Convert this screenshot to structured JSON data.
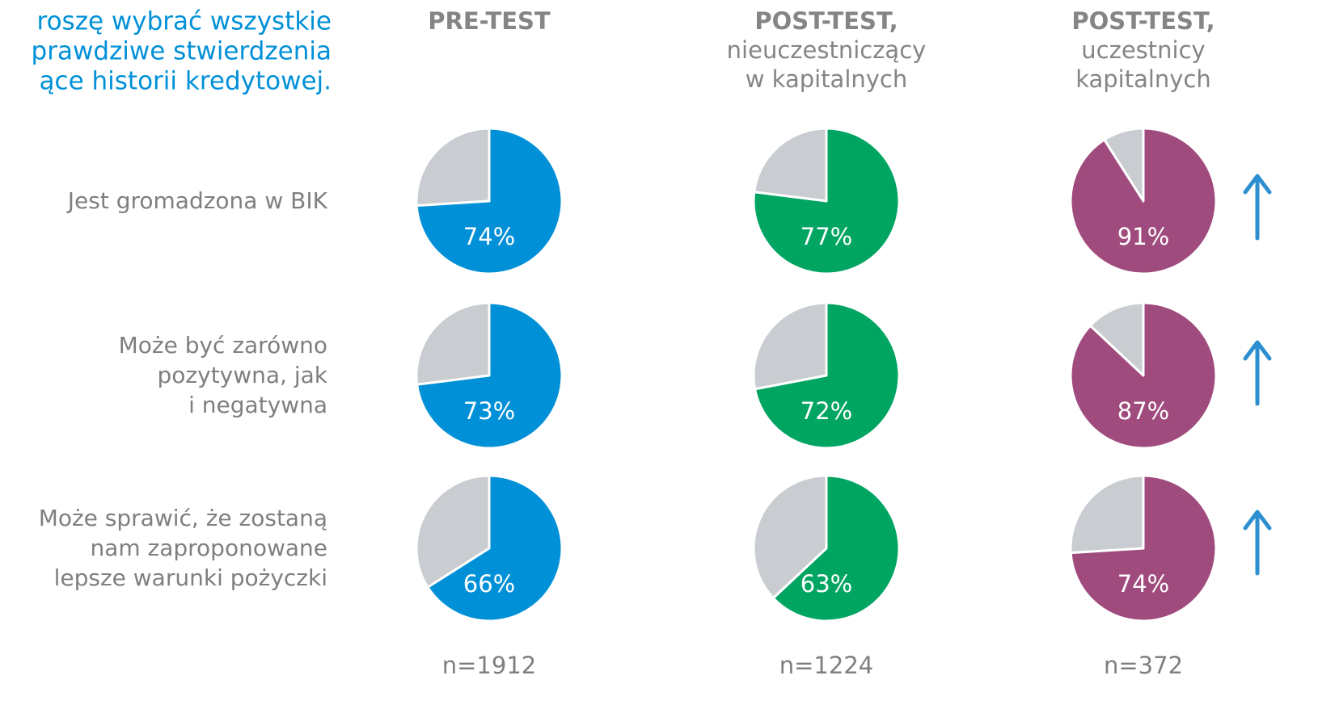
{
  "chart_data": {
    "type": "pie",
    "title": [
      "roszę wybrać wszystkie",
      "prawdziwe stwierdzenia",
      "ące historii kredytowej."
    ],
    "rows": [
      [
        "Jest gromadzona w BIK"
      ],
      [
        "Może być zarówno",
        "pozytywna, jak",
        "i negatywna"
      ],
      [
        "Może sprawić, że zostaną",
        "nam zaproponowane",
        "lepsze warunki pożyczki"
      ]
    ],
    "remainder_color": "#c9ccd0",
    "columns": [
      {
        "header": "PRE-TEST",
        "subheader": [],
        "color": "#0090d8",
        "values": [
          74,
          73,
          66
        ],
        "value_labels": [
          "74%",
          "73%",
          "66%"
        ],
        "n": "n=1912"
      },
      {
        "header": "POST-TEST,",
        "subheader": [
          "nieuczestniczący",
          "w kapitalnych"
        ],
        "color": "#00a562",
        "values": [
          77,
          72,
          63
        ],
        "value_labels": [
          "77%",
          "72%",
          "63%"
        ],
        "n": "n=1224"
      },
      {
        "header": "POST-TEST,",
        "subheader": [
          "uczestnicy",
          "kapitalnych"
        ],
        "color": "#a04b7d",
        "values": [
          91,
          87,
          74
        ],
        "value_labels": [
          "91%",
          "87%",
          "74%"
        ],
        "n": "n=372"
      }
    ]
  }
}
